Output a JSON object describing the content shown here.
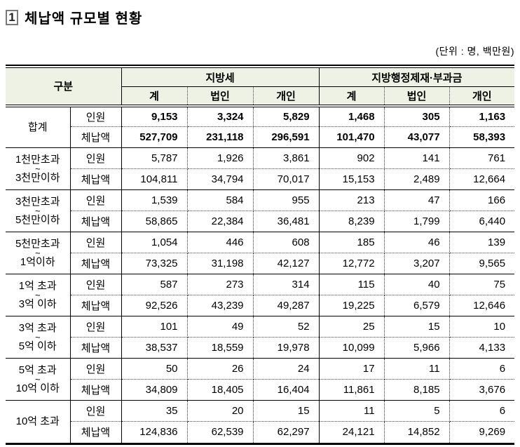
{
  "title": {
    "box_number": "1",
    "text": "체납액 규모별 현황"
  },
  "unit_note": "(단위 : 명, 백만원)",
  "colors": {
    "header_bg": "#eef2e4",
    "border": "#000000",
    "dotted_line": "#444444"
  },
  "table": {
    "corner_label": "구분",
    "groups": [
      {
        "label": "지방세",
        "columns": [
          "계",
          "법인",
          "개인"
        ]
      },
      {
        "label": "지방행정제재·부과금",
        "columns": [
          "계",
          "법인",
          "개인"
        ]
      }
    ],
    "row_type_labels": [
      "인원",
      "체납액"
    ],
    "rows": [
      {
        "label_lines": [
          "합계"
        ],
        "tilde": false,
        "bold": true,
        "counts": [
          "9,153",
          "3,324",
          "5,829",
          "1,468",
          "305",
          "1,163"
        ],
        "amounts": [
          "527,709",
          "231,118",
          "296,591",
          "101,470",
          "43,077",
          "58,393"
        ]
      },
      {
        "label_lines": [
          "1천만초과",
          "3천만이하"
        ],
        "tilde": true,
        "bold": false,
        "counts": [
          "5,787",
          "1,926",
          "3,861",
          "902",
          "141",
          "761"
        ],
        "amounts": [
          "104,811",
          "34,794",
          "70,017",
          "15,153",
          "2,489",
          "12,664"
        ]
      },
      {
        "label_lines": [
          "3천만초과",
          "5천만이하"
        ],
        "tilde": true,
        "bold": false,
        "counts": [
          "1,539",
          "584",
          "955",
          "213",
          "47",
          "166"
        ],
        "amounts": [
          "58,865",
          "22,384",
          "36,481",
          "8,239",
          "1,799",
          "6,440"
        ]
      },
      {
        "label_lines": [
          "5천만초과",
          "1억이하"
        ],
        "tilde": true,
        "bold": false,
        "counts": [
          "1,054",
          "446",
          "608",
          "185",
          "46",
          "139"
        ],
        "amounts": [
          "73,325",
          "31,198",
          "42,127",
          "12,772",
          "3,207",
          "9,565"
        ]
      },
      {
        "label_lines": [
          "1억 초과",
          "3억 이하"
        ],
        "tilde": true,
        "bold": false,
        "counts": [
          "587",
          "273",
          "314",
          "115",
          "40",
          "75"
        ],
        "amounts": [
          "92,526",
          "43,239",
          "49,287",
          "19,225",
          "6,579",
          "12,646"
        ]
      },
      {
        "label_lines": [
          "3억 초과",
          "5억 이하"
        ],
        "tilde": true,
        "bold": false,
        "counts": [
          "101",
          "49",
          "52",
          "25",
          "15",
          "10"
        ],
        "amounts": [
          "38,537",
          "18,559",
          "19,978",
          "10,099",
          "5,966",
          "4,133"
        ]
      },
      {
        "label_lines": [
          "5억 초과",
          "10억 이하"
        ],
        "tilde": true,
        "bold": false,
        "counts": [
          "50",
          "26",
          "24",
          "17",
          "11",
          "6"
        ],
        "amounts": [
          "34,809",
          "18,405",
          "16,404",
          "11,861",
          "8,185",
          "3,676"
        ]
      },
      {
        "label_lines": [
          "10억 초과"
        ],
        "tilde": false,
        "bold": false,
        "counts": [
          "35",
          "20",
          "15",
          "11",
          "5",
          "6"
        ],
        "amounts": [
          "124,836",
          "62,539",
          "62,297",
          "24,121",
          "14,852",
          "9,269"
        ]
      }
    ]
  }
}
